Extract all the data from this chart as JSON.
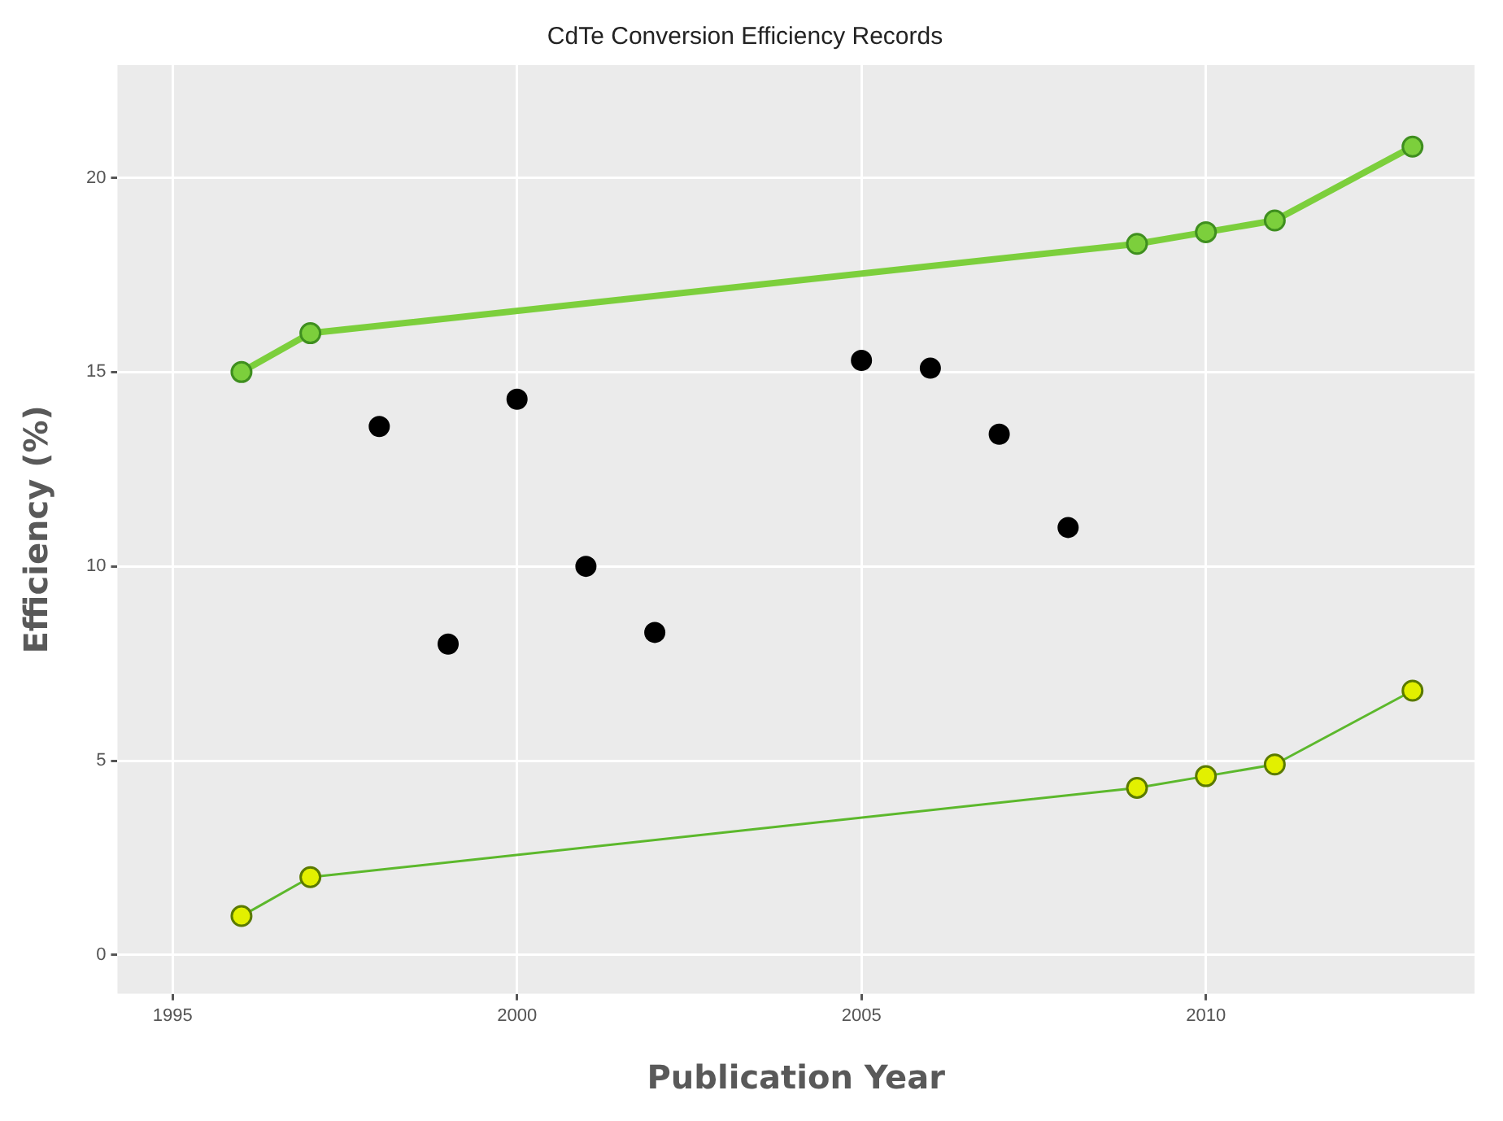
{
  "chart_data": {
    "type": "line",
    "title": "CdTe Conversion Efficiency Records",
    "xlabel": "Publication Year",
    "ylabel": "Efficiency (%)",
    "xlim": [
      1994.2,
      2013.9
    ],
    "xticks": [
      1995,
      2000,
      2005,
      2010
    ],
    "ylim": [
      -1,
      22.9
    ],
    "yticks": [
      0,
      5,
      10,
      15,
      20
    ],
    "grid": true,
    "legend": false,
    "marker": "circle",
    "series": [
      {
        "color": "#7ccf3c",
        "x": [
          1996,
          1997,
          2009,
          2010,
          2011,
          2013
        ],
        "values": [
          15.0,
          16.0,
          18.3,
          18.6,
          18.9,
          20.8
        ]
      },
      {
        "type": "scatter",
        "color": "#000000",
        "x": [
          1998,
          1999,
          2000,
          2001,
          2002,
          2005,
          2006,
          2007,
          2008
        ],
        "values": [
          13.6,
          8.0,
          14.3,
          10.0,
          8.3,
          15.3,
          15.1,
          13.4,
          11.0
        ]
      },
      {
        "color": "#e2f000",
        "x": [
          1996,
          1997,
          2009,
          2010,
          2011,
          2013
        ],
        "values": [
          1.0,
          2.0,
          4.3,
          4.6,
          4.9,
          6.8
        ]
      }
    ]
  }
}
